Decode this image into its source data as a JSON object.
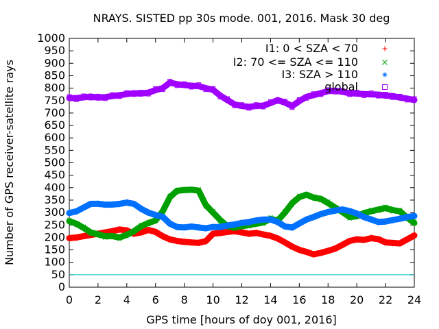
{
  "chart_data": {
    "type": "scatter",
    "title": "NRAYS. SISTED pp 30s mode. 001, 2016. Mask 30 deg",
    "xlabel": "GPS time [hours of doy 001, 2016]",
    "ylabel": "Number of GPS receiver-satellite rays",
    "xlim": [
      0,
      24
    ],
    "ylim": [
      0,
      1000
    ],
    "xticks": [
      "0",
      "2",
      "4",
      "6",
      "8",
      "10",
      "12",
      "14",
      "16",
      "18",
      "20",
      "22",
      "24"
    ],
    "yticks": [
      "0",
      "50",
      "100",
      "150",
      "200",
      "250",
      "300",
      "350",
      "400",
      "450",
      "500",
      "550",
      "600",
      "650",
      "700",
      "750",
      "800",
      "850",
      "900",
      "950",
      "1000"
    ],
    "reference_line": {
      "y": 50,
      "color": "#00c0c0"
    },
    "legend_position": "top-right",
    "series": [
      {
        "name": "I1: 0 < SZA < 70",
        "color": "#ff0000",
        "marker": "+",
        "x": [
          0,
          0.5,
          1,
          1.5,
          2,
          2.5,
          3,
          3.5,
          4,
          4.5,
          5,
          5.5,
          6,
          6.5,
          7,
          7.5,
          8,
          8.5,
          9,
          9.5,
          10,
          10.5,
          11,
          11.5,
          12,
          12.5,
          13,
          13.5,
          14,
          14.5,
          15,
          15.5,
          16,
          16.5,
          17,
          17.5,
          18,
          18.5,
          19,
          19.5,
          20,
          20.5,
          21,
          21.5,
          22,
          22.5,
          23,
          23.5,
          24
        ],
        "y": [
          197,
          200,
          205,
          210,
          215,
          220,
          225,
          232,
          228,
          215,
          220,
          230,
          222,
          205,
          192,
          186,
          182,
          180,
          178,
          185,
          215,
          218,
          222,
          225,
          220,
          215,
          218,
          212,
          206,
          196,
          180,
          163,
          150,
          142,
          132,
          138,
          146,
          155,
          170,
          186,
          192,
          190,
          197,
          193,
          180,
          178,
          176,
          192,
          208
        ]
      },
      {
        "name": "I2: 70 <= SZA <= 110",
        "color": "#00a000",
        "marker": "x",
        "x": [
          0,
          0.5,
          1,
          1.5,
          2,
          2.5,
          3,
          3.5,
          4,
          4.5,
          5,
          5.5,
          6,
          6.5,
          7,
          7.5,
          8,
          8.5,
          9,
          9.5,
          10,
          10.5,
          11,
          11.5,
          12,
          12.5,
          13,
          13.5,
          14,
          14.5,
          15,
          15.5,
          16,
          16.5,
          17,
          17.5,
          18,
          18.5,
          19,
          19.5,
          20,
          20.5,
          21,
          21.5,
          22,
          22.5,
          23,
          23.5,
          24
        ],
        "y": [
          265,
          255,
          238,
          220,
          212,
          205,
          205,
          200,
          210,
          225,
          245,
          258,
          268,
          305,
          362,
          388,
          390,
          392,
          388,
          330,
          300,
          270,
          245,
          240,
          245,
          250,
          255,
          260,
          275,
          268,
          300,
          338,
          362,
          372,
          360,
          355,
          338,
          320,
          302,
          282,
          285,
          298,
          305,
          312,
          318,
          310,
          305,
          280,
          258
        ]
      },
      {
        "name": "I3: SZA > 110",
        "color": "#0070ff",
        "marker": "*",
        "x": [
          0,
          0.5,
          1,
          1.5,
          2,
          2.5,
          3,
          3.5,
          4,
          4.5,
          5,
          5.5,
          6,
          6.5,
          7,
          7.5,
          8,
          8.5,
          9,
          9.5,
          10,
          10.5,
          11,
          11.5,
          12,
          12.5,
          13,
          13.5,
          14,
          14.5,
          15,
          15.5,
          16,
          16.5,
          17,
          17.5,
          18,
          18.5,
          19,
          19.5,
          20,
          20.5,
          21,
          21.5,
          22,
          22.5,
          23,
          23.5,
          24
        ],
        "y": [
          298,
          305,
          320,
          335,
          335,
          332,
          332,
          335,
          340,
          335,
          315,
          300,
          290,
          283,
          255,
          242,
          240,
          244,
          240,
          237,
          242,
          242,
          248,
          252,
          258,
          262,
          268,
          272,
          272,
          262,
          244,
          240,
          256,
          272,
          282,
          294,
          302,
          308,
          312,
          306,
          296,
          282,
          272,
          262,
          264,
          270,
          275,
          282,
          286
        ]
      },
      {
        "name": "global",
        "color": "#a000ff",
        "marker": "square",
        "x": [
          0,
          0.5,
          1,
          1.5,
          2,
          2.5,
          3,
          3.5,
          4,
          4.5,
          5,
          5.5,
          6,
          6.5,
          7,
          7.5,
          8,
          8.5,
          9,
          9.5,
          10,
          10.5,
          11,
          11.5,
          12,
          12.5,
          13,
          13.5,
          14,
          14.5,
          15,
          15.5,
          16,
          16.5,
          17,
          17.5,
          18,
          18.5,
          19,
          19.5,
          20,
          20.5,
          21,
          21.5,
          22,
          22.5,
          23,
          23.5,
          24
        ],
        "y": [
          760,
          760,
          763,
          766,
          762,
          764,
          768,
          772,
          776,
          780,
          778,
          782,
          792,
          800,
          822,
          816,
          812,
          810,
          808,
          800,
          793,
          770,
          752,
          735,
          728,
          725,
          728,
          730,
          740,
          752,
          742,
          728,
          748,
          765,
          772,
          780,
          788,
          790,
          785,
          780,
          778,
          776,
          775,
          774,
          770,
          768,
          762,
          758,
          752
        ]
      }
    ]
  }
}
